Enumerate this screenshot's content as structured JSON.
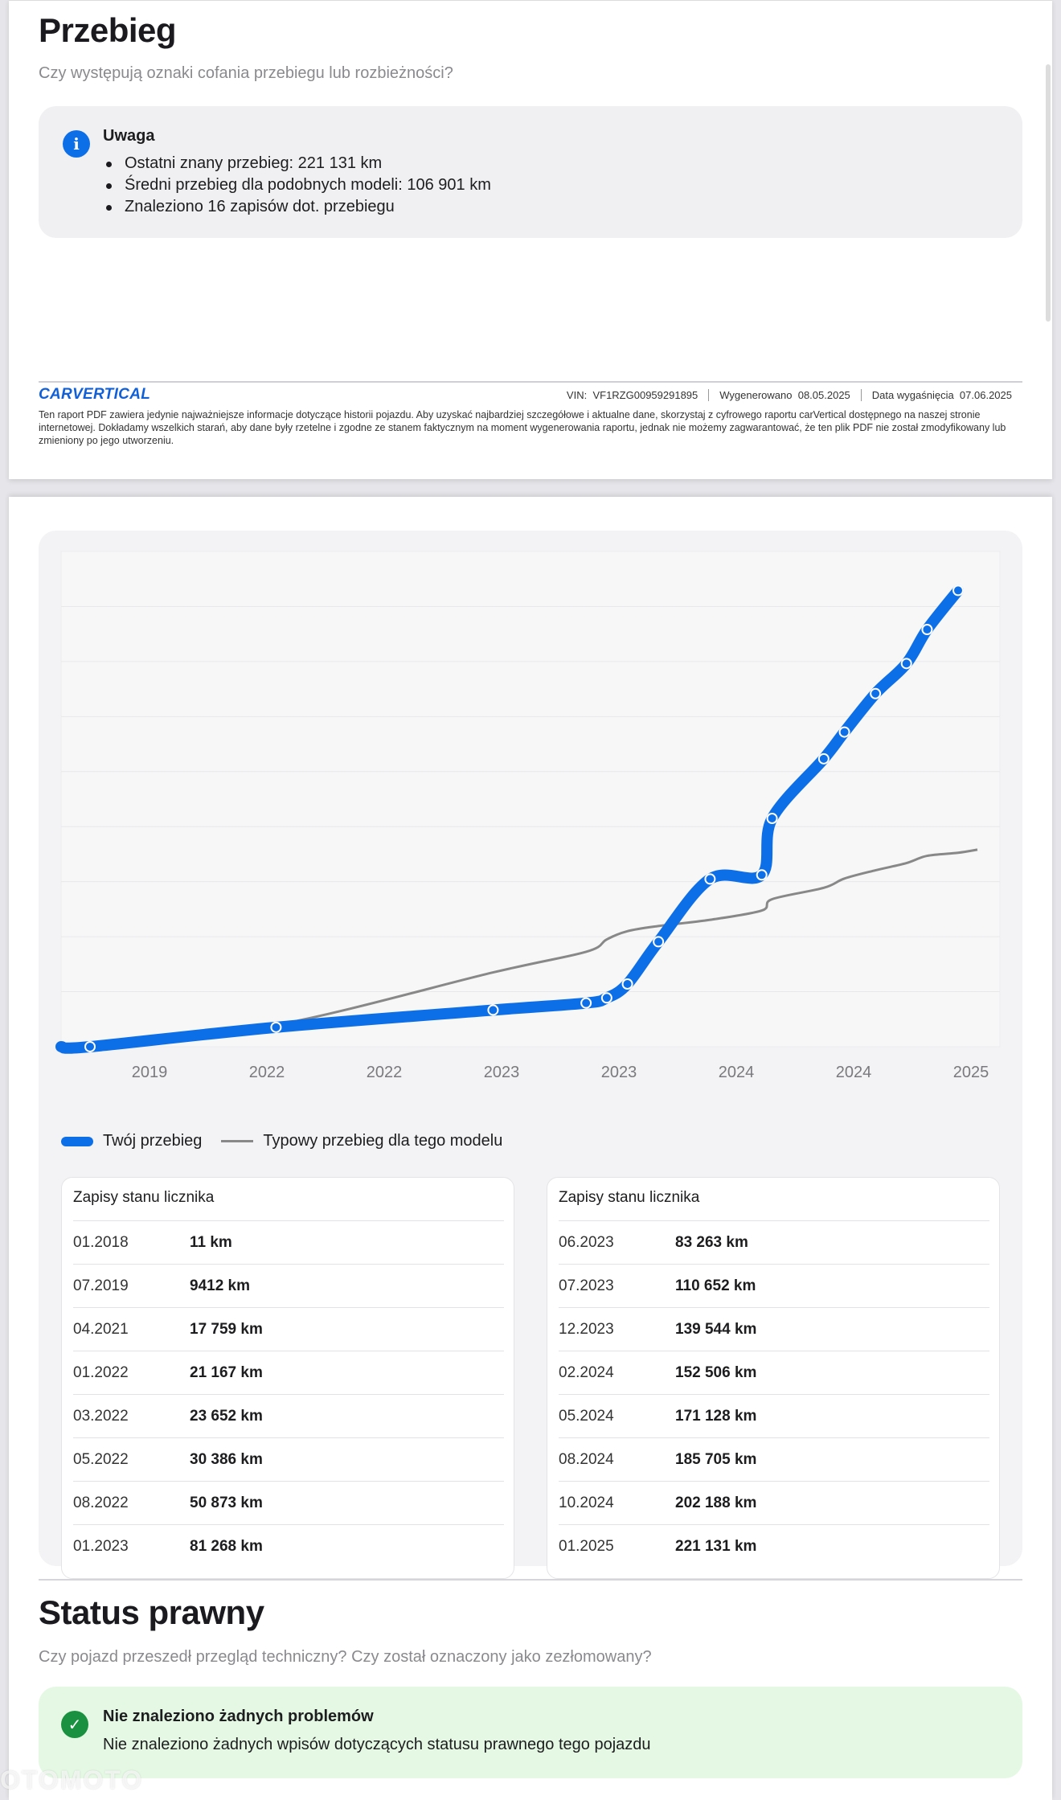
{
  "mileage": {
    "title": "Przebieg",
    "subtitle": "Czy występują oznaki cofania przebiegu lub rozbieżności?",
    "alert": {
      "title": "Uwaga",
      "items": [
        "Ostatni znany przebieg: 221 131 km",
        "Średni przebieg dla podobnych modeli: 106 901 km",
        "Znaleziono 16 zapisów dot. przebiegu"
      ],
      "icon": "info-icon"
    }
  },
  "footer": {
    "brand": "CARVERTICAL",
    "vin_label": "VIN:",
    "vin": "VF1RZG00959291895",
    "generated_label": "Wygenerowano",
    "generated": "08.05.2025",
    "expiry_label": "Data wygaśnięcia",
    "expiry": "07.06.2025",
    "disclaimer": "Ten raport PDF zawiera jedynie najważniejsze informacje dotyczące historii pojazdu. Aby uzyskać najbardziej szczegółowe i aktualne dane, skorzystaj z cyfrowego raportu carVertical dostępnego na naszej stronie internetowej. Dokładamy wszelkich starań, aby dane były rzetelne i zgodne ze stanem faktycznym na moment wygenerowania raportu, jednak nie możemy zagwarantować, że ten plik PDF nie został zmodyfikowany lub zmieniony po jego utworzeniu."
  },
  "chart_data": {
    "type": "line",
    "x_ticks": [
      "2019",
      "2022",
      "2022",
      "2023",
      "2023",
      "2024",
      "2024",
      "2025"
    ],
    "ylim": [
      0,
      240000
    ],
    "grid": true,
    "legend_placement": "bottom-left",
    "series": [
      {
        "name": "Twój przebieg",
        "color": "#0d6fe8",
        "points": [
          [
            "01.2018",
            11
          ],
          [
            "07.2019",
            9412
          ],
          [
            "04.2021",
            17759
          ],
          [
            "01.2022",
            21167
          ],
          [
            "03.2022",
            23652
          ],
          [
            "05.2022",
            30386
          ],
          [
            "08.2022",
            50873
          ],
          [
            "01.2023",
            81268
          ],
          [
            "06.2023",
            83263
          ],
          [
            "07.2023",
            110652
          ],
          [
            "12.2023",
            139544
          ],
          [
            "02.2024",
            152506
          ],
          [
            "05.2024",
            171128
          ],
          [
            "08.2024",
            185705
          ],
          [
            "10.2024",
            202188
          ],
          [
            "01.2025",
            221131
          ]
        ]
      },
      {
        "name": "Typowy przebieg dla tego modelu",
        "color": "#888888",
        "points": [
          [
            "01.2018",
            0
          ],
          [
            "07.2019",
            10500
          ],
          [
            "04.2021",
            36000
          ],
          [
            "01.2022",
            46000
          ],
          [
            "03.2022",
            52000
          ],
          [
            "05.2022",
            56000
          ],
          [
            "08.2022",
            58500
          ],
          [
            "01.2023",
            61500
          ],
          [
            "06.2023",
            66000
          ],
          [
            "07.2023",
            71500
          ],
          [
            "12.2023",
            77000
          ],
          [
            "02.2024",
            81500
          ],
          [
            "05.2024",
            85500
          ],
          [
            "08.2024",
            89000
          ],
          [
            "10.2024",
            92500
          ],
          [
            "01.2025",
            94000
          ]
        ]
      }
    ]
  },
  "records": {
    "left_title": "Zapisy stanu licznika",
    "right_title": "Zapisy stanu licznika",
    "left": [
      {
        "date": "01.2018",
        "km": "11 km"
      },
      {
        "date": "07.2019",
        "km": "9412 km"
      },
      {
        "date": "04.2021",
        "km": "17 759 km"
      },
      {
        "date": "01.2022",
        "km": "21 167 km"
      },
      {
        "date": "03.2022",
        "km": "23 652 km"
      },
      {
        "date": "05.2022",
        "km": "30 386 km"
      },
      {
        "date": "08.2022",
        "km": "50 873 km"
      },
      {
        "date": "01.2023",
        "km": "81 268 km"
      }
    ],
    "right": [
      {
        "date": "06.2023",
        "km": "83 263 km"
      },
      {
        "date": "07.2023",
        "km": "110 652 km"
      },
      {
        "date": "12.2023",
        "km": "139 544 km"
      },
      {
        "date": "02.2024",
        "km": "152 506 km"
      },
      {
        "date": "05.2024",
        "km": "171 128 km"
      },
      {
        "date": "08.2024",
        "km": "185 705 km"
      },
      {
        "date": "10.2024",
        "km": "202 188 km"
      },
      {
        "date": "01.2025",
        "km": "221 131 km"
      }
    ]
  },
  "legal": {
    "title": "Status prawny",
    "subtitle": "Czy pojazd przeszedł przegląd techniczny? Czy został oznaczony jako zezłomowany?",
    "ok_title": "Nie znaleziono żadnych problemów",
    "ok_text": "Nie znaleziono żadnych wpisów dotyczących statusu prawnego tego pojazdu",
    "icon": "check-circle-icon"
  },
  "watermark": "OTOMOTO"
}
